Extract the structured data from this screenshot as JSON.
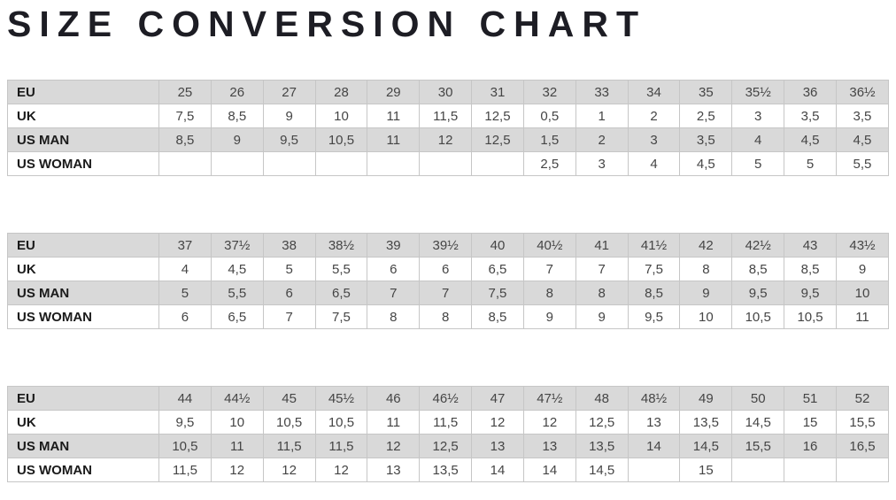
{
  "title": "SIZE CONVERSION CHART",
  "tables": [
    {
      "rows": [
        {
          "label": "EU",
          "values": [
            "25",
            "26",
            "27",
            "28",
            "29",
            "30",
            "31",
            "32",
            "33",
            "34",
            "35",
            "35½",
            "36",
            "36½"
          ]
        },
        {
          "label": "UK",
          "values": [
            "7,5",
            "8,5",
            "9",
            "10",
            "11",
            "11,5",
            "12,5",
            "0,5",
            "1",
            "2",
            "2,5",
            "3",
            "3,5",
            "3,5"
          ]
        },
        {
          "label": "US MAN",
          "values": [
            "8,5",
            "9",
            "9,5",
            "10,5",
            "11",
            "12",
            "12,5",
            "1,5",
            "2",
            "3",
            "3,5",
            "4",
            "4,5",
            "4,5"
          ]
        },
        {
          "label": "US WOMAN",
          "values": [
            "",
            "",
            "",
            "",
            "",
            "",
            "",
            "2,5",
            "3",
            "4",
            "4,5",
            "5",
            "5",
            "5,5"
          ]
        }
      ]
    },
    {
      "rows": [
        {
          "label": "EU",
          "values": [
            "37",
            "37½",
            "38",
            "38½",
            "39",
            "39½",
            "40",
            "40½",
            "41",
            "41½",
            "42",
            "42½",
            "43",
            "43½"
          ]
        },
        {
          "label": "UK",
          "values": [
            "4",
            "4,5",
            "5",
            "5,5",
            "6",
            "6",
            "6,5",
            "7",
            "7",
            "7,5",
            "8",
            "8,5",
            "8,5",
            "9"
          ]
        },
        {
          "label": "US MAN",
          "values": [
            "5",
            "5,5",
            "6",
            "6,5",
            "7",
            "7",
            "7,5",
            "8",
            "8",
            "8,5",
            "9",
            "9,5",
            "9,5",
            "10"
          ]
        },
        {
          "label": "US WOMAN",
          "values": [
            "6",
            "6,5",
            "7",
            "7,5",
            "8",
            "8",
            "8,5",
            "9",
            "9",
            "9,5",
            "10",
            "10,5",
            "10,5",
            "11"
          ]
        }
      ]
    },
    {
      "rows": [
        {
          "label": "EU",
          "values": [
            "44",
            "44½",
            "45",
            "45½",
            "46",
            "46½",
            "47",
            "47½",
            "48",
            "48½",
            "49",
            "50",
            "51",
            "52"
          ]
        },
        {
          "label": "UK",
          "values": [
            "9,5",
            "10",
            "10,5",
            "10,5",
            "11",
            "11,5",
            "12",
            "12",
            "12,5",
            "13",
            "13,5",
            "14,5",
            "15",
            "15,5"
          ]
        },
        {
          "label": "US MAN",
          "values": [
            "10,5",
            "11",
            "11,5",
            "11,5",
            "12",
            "12,5",
            "13",
            "13",
            "13,5",
            "14",
            "14,5",
            "15,5",
            "16",
            "16,5"
          ]
        },
        {
          "label": "US WOMAN",
          "values": [
            "11,5",
            "12",
            "12",
            "12",
            "13",
            "13,5",
            "14",
            "14",
            "14,5",
            "",
            "15",
            "",
            "",
            ""
          ]
        }
      ]
    }
  ]
}
